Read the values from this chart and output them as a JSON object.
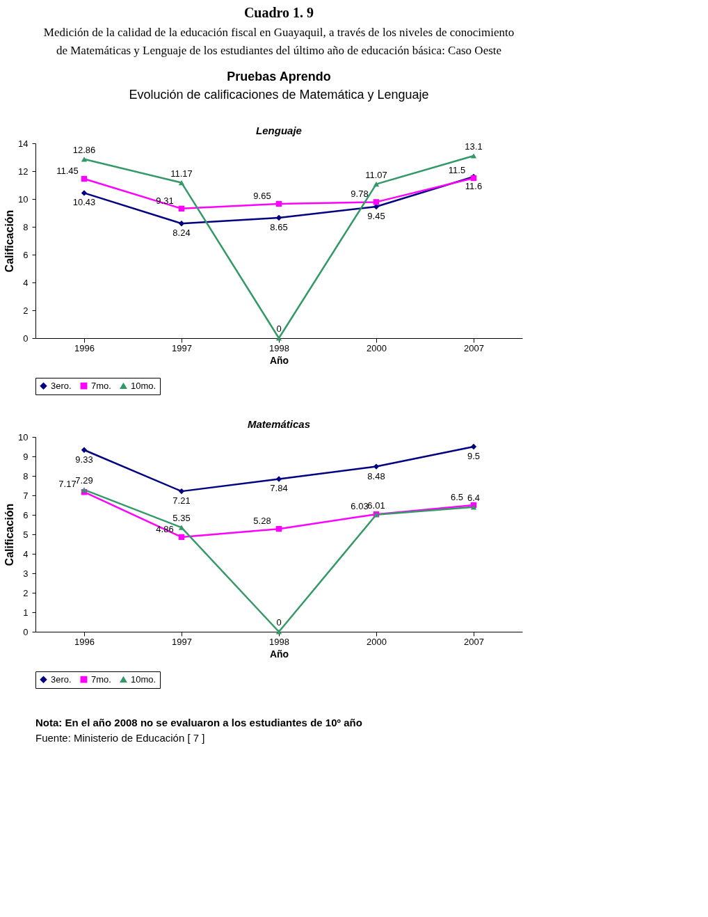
{
  "chart_data": [
    {
      "type": "line",
      "title": "Lenguaje",
      "xlabel": "Año",
      "ylabel": "Calificación",
      "annotations": [
        "Cuadro 1. 9",
        "Medición de la calidad de la educación fiscal en Guayaquil, a través de los niveles de conocimiento",
        "de Matemáticas y Lenguaje de los estudiantes del último año de educación básica: Caso Oeste",
        "Pruebas Aprendo",
        "Evolución de calificaciones de Matemática y Lenguaje"
      ],
      "categories": [
        "1996",
        "1997",
        "1998",
        "2000",
        "2007"
      ],
      "series": [
        {
          "name": "3ero.",
          "color": "#000080",
          "marker": "diamond",
          "values": [
            10.43,
            8.24,
            8.65,
            9.45,
            11.6
          ]
        },
        {
          "name": "7mo.",
          "color": "#ff00ff",
          "marker": "square",
          "values": [
            11.45,
            9.31,
            9.65,
            9.78,
            11.5
          ]
        },
        {
          "name": "10mo.",
          "color": "#339966",
          "marker": "triangle",
          "values": [
            12.86,
            11.17,
            0,
            11.07,
            13.1
          ]
        }
      ],
      "ylim": [
        0,
        14
      ],
      "yticks": [
        0,
        2,
        4,
        6,
        8,
        10,
        12,
        14
      ],
      "grid": false,
      "legend": "bottom left",
      "data_labels": true
    },
    {
      "type": "line",
      "title": "Matemáticas",
      "xlabel": "Año",
      "ylabel": "Calificación",
      "annotations": [
        "Nota: En el año 2008 no se evaluaron a los estudiantes de 10º año",
        "Fuente: Ministerio de Educación [ 7 ]"
      ],
      "categories": [
        "1996",
        "1997",
        "1998",
        "2000",
        "2007"
      ],
      "series": [
        {
          "name": "3ero.",
          "color": "#000080",
          "marker": "diamond",
          "values": [
            9.33,
            7.21,
            7.84,
            8.48,
            9.5
          ]
        },
        {
          "name": "7mo.",
          "color": "#ff00ff",
          "marker": "square",
          "values": [
            7.17,
            4.86,
            5.28,
            6.03,
            6.5
          ]
        },
        {
          "name": "10mo.",
          "color": "#339966",
          "marker": "triangle",
          "values": [
            7.29,
            5.35,
            0,
            6.01,
            6.4
          ]
        }
      ],
      "ylim": [
        0,
        10
      ],
      "yticks": [
        0,
        1,
        2,
        3,
        4,
        5,
        6,
        7,
        8,
        9,
        10
      ],
      "grid": false,
      "legend": "bottom left",
      "data_labels": true
    }
  ]
}
